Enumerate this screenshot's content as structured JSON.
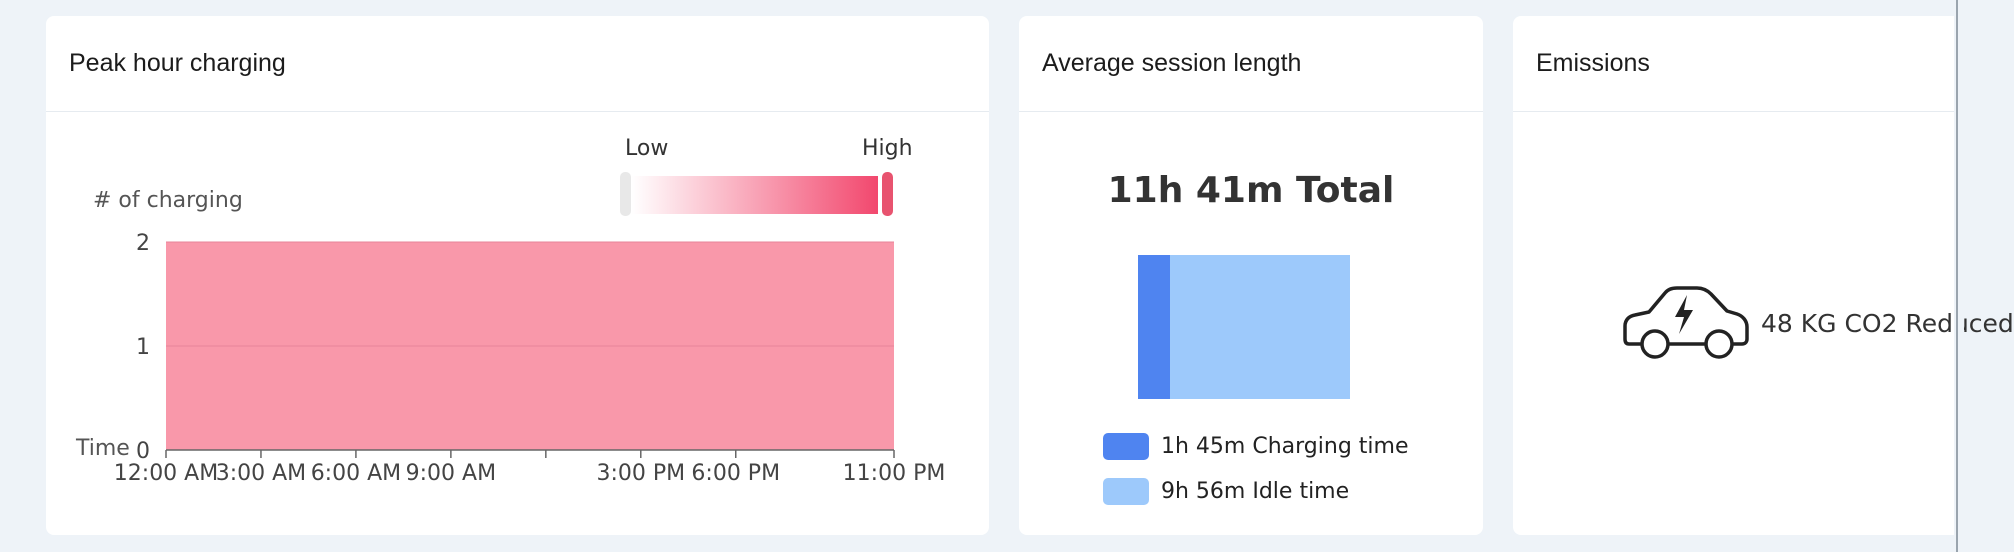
{
  "peak": {
    "title": "Peak hour charging",
    "legend_low": "Low",
    "legend_high": "High",
    "colors": {
      "area": "#f998aa",
      "gradient_end": "#f2486e",
      "handle": "#e8e8e8"
    }
  },
  "chart_data": {
    "type": "area",
    "title": "Peak hour charging",
    "ylabel": "# of charging",
    "xlabel": "Time",
    "ylim": [
      0,
      2
    ],
    "yticks": [
      {
        "value": 0,
        "label": "0"
      },
      {
        "value": 1,
        "label": "1"
      },
      {
        "value": 2,
        "label": "2"
      }
    ],
    "xrange": [
      0,
      23
    ],
    "xticks": [
      {
        "hour": 0,
        "label": "12:00 AM"
      },
      {
        "hour": 3,
        "label": "3:00 AM"
      },
      {
        "hour": 6,
        "label": "6:00 AM"
      },
      {
        "hour": 9,
        "label": "9:00 AM"
      },
      {
        "hour": 12,
        "label": ""
      },
      {
        "hour": 15,
        "label": "3:00 PM"
      },
      {
        "hour": 18,
        "label": "6:00 PM"
      },
      {
        "hour": 23,
        "label": "11:00 PM"
      }
    ],
    "series": [
      {
        "name": "# of charging",
        "x": [
          0,
          23
        ],
        "values": [
          2,
          2
        ]
      }
    ],
    "visual_map": {
      "min_label": "Low",
      "max_label": "High"
    }
  },
  "session": {
    "title": "Average session length",
    "total_label": "11h 41m Total",
    "charging_minutes": 105,
    "idle_minutes": 596,
    "charging_label": "1h 45m Charging time",
    "idle_label": "9h 56m Idle time",
    "colors": {
      "charging": "#4f84f0",
      "idle": "#9dc9fb"
    }
  },
  "emissions": {
    "title": "Emissions",
    "icon": "electric-car-icon",
    "text": "48 KG CO2 Reduced"
  }
}
